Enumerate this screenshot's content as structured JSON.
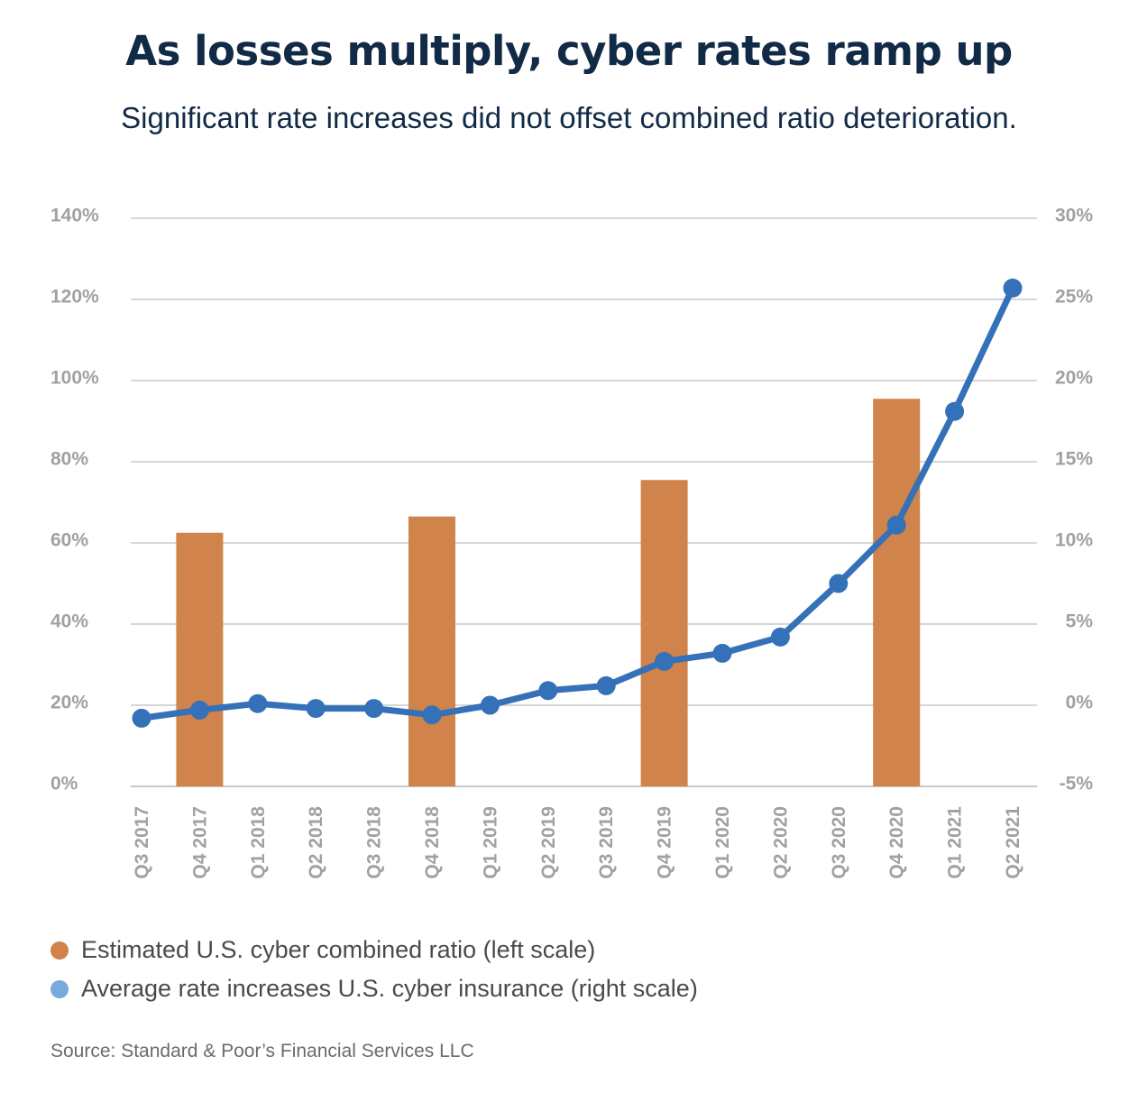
{
  "chart_data": {
    "type": "bar+line",
    "title": "As losses multiply, cyber rates ramp up",
    "subtitle": "Significant rate increases did not offset combined ratio deterioration.",
    "categories": [
      "Q3 2017",
      "Q4 2017",
      "Q1 2018",
      "Q2 2018",
      "Q3 2018",
      "Q4 2018",
      "Q1 2019",
      "Q2 2019",
      "Q3 2019",
      "Q4 2019",
      "Q1 2020",
      "Q2 2020",
      "Q3 2020",
      "Q4 2020",
      "Q1 2021",
      "Q2 2021"
    ],
    "left_axis": {
      "min": 0,
      "max": 140,
      "step": 20,
      "ticks": [
        "0%",
        "20%",
        "40%",
        "60%",
        "80%",
        "100%",
        "120%",
        "140%"
      ]
    },
    "right_axis": {
      "min": -5,
      "max": 30,
      "step": 5,
      "ticks": [
        "-5%",
        "0%",
        "5%",
        "10%",
        "15%",
        "20%",
        "25%",
        "30%"
      ]
    },
    "series": [
      {
        "name": "Estimated U.S. cyber combined ratio (left scale)",
        "type": "bar",
        "axis": "left",
        "color": "#d0834a",
        "values": [
          null,
          62.5,
          null,
          null,
          null,
          66.5,
          null,
          null,
          null,
          75.5,
          null,
          null,
          null,
          95.5,
          null,
          null
        ]
      },
      {
        "name": "Average rate increases U.S. cyber insurance (right scale)",
        "type": "line",
        "axis": "right",
        "color": "#3471b8",
        "legend_color": "#7aa9dc",
        "values": [
          -0.8,
          -0.3,
          0.1,
          -0.2,
          -0.2,
          -0.6,
          0.0,
          0.9,
          1.2,
          2.7,
          3.2,
          4.2,
          7.5,
          11.1,
          18.1,
          25.7
        ]
      }
    ],
    "grid": true
  },
  "legend": {
    "bar_label": "Estimated U.S. cyber combined ratio (left scale)",
    "line_label": "Average rate increases U.S. cyber insurance (right scale)"
  },
  "source": "Source: Standard & Poor’s Financial Services LLC"
}
